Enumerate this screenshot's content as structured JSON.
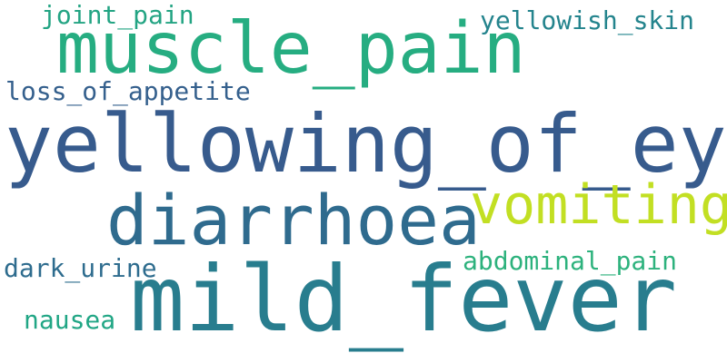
{
  "words": [
    {
      "text": "joint_pain",
      "color": "#23a483"
    },
    {
      "text": "yellowish_skin",
      "color": "#24848d"
    },
    {
      "text": "muscle_pain",
      "color": "#26ad81"
    },
    {
      "text": "loss_of_appetite",
      "color": "#35608d"
    },
    {
      "text": "yellowing_of_eyes",
      "color": "#375b8d"
    },
    {
      "text": "vomiting",
      "color": "#c2df23"
    },
    {
      "text": "diarrhoea",
      "color": "#2f6b8e"
    },
    {
      "text": "abdominal_pain",
      "color": "#2db27d"
    },
    {
      "text": "dark_urine",
      "color": "#2e6c8e"
    },
    {
      "text": "mild_fever",
      "color": "#287d8e"
    },
    {
      "text": "nausea",
      "color": "#21a685"
    }
  ]
}
